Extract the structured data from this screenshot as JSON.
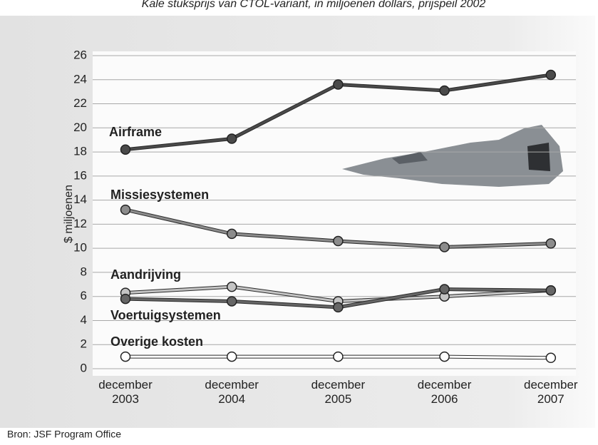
{
  "chart_data": {
    "type": "line",
    "subtitle": "Kale stuksprijs van CTOL-variant, in miljoenen dollars, prijspeil 2002",
    "y_label": "$ miljoenen",
    "source": "Bron: JSF Program Office",
    "categories": [
      "december 2003",
      "december 2004",
      "december 2005",
      "december 2006",
      "december 2007"
    ],
    "ylim": [
      0,
      26
    ],
    "yticks": [
      0,
      2,
      4,
      6,
      8,
      10,
      12,
      14,
      16,
      18,
      20,
      22,
      24,
      26
    ],
    "grid": true,
    "series": [
      {
        "name": "Airframe",
        "color": "#4a4a4a",
        "values": [
          18.2,
          19.1,
          23.6,
          23.1,
          24.4
        ]
      },
      {
        "name": "Missiesystemen",
        "color": "#8c8c8c",
        "values": [
          13.2,
          11.2,
          10.6,
          10.1,
          10.4
        ]
      },
      {
        "name": "Aandrijving",
        "color": "#c4c4c4",
        "values": [
          6.3,
          6.8,
          5.6,
          6.0,
          6.5
        ]
      },
      {
        "name": "Voertuigsystemen",
        "color": "#666666",
        "values": [
          5.8,
          5.6,
          5.1,
          6.6,
          6.5
        ]
      },
      {
        "name": "Overige kosten",
        "color": "#ffffff",
        "values": [
          1.0,
          1.0,
          1.0,
          1.0,
          0.9
        ]
      }
    ]
  }
}
